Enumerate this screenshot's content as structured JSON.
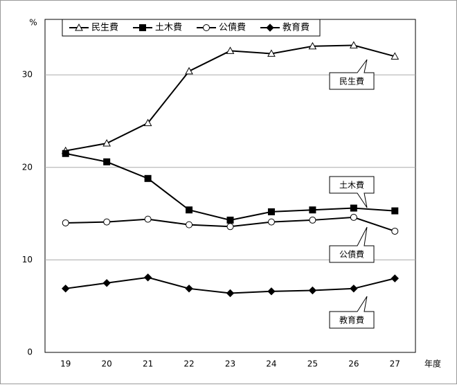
{
  "chart_data": {
    "type": "line",
    "y_label": "%",
    "x_label": "年度",
    "categories": [
      "19",
      "20",
      "21",
      "22",
      "23",
      "24",
      "25",
      "26",
      "27"
    ],
    "series": [
      {
        "name": "民生費",
        "color": "#000000",
        "marker": "triangle-open",
        "values": [
          21.8,
          22.6,
          24.8,
          30.4,
          32.6,
          32.3,
          33.1,
          33.2,
          32.0
        ]
      },
      {
        "name": "土木費",
        "color": "#000000",
        "marker": "square",
        "values": [
          21.5,
          20.6,
          18.8,
          15.4,
          14.3,
          15.2,
          15.4,
          15.6,
          15.3
        ]
      },
      {
        "name": "公債費",
        "color": "#000000",
        "marker": "circle-open",
        "values": [
          14.0,
          14.1,
          14.4,
          13.8,
          13.6,
          14.1,
          14.3,
          14.6,
          13.1
        ]
      },
      {
        "name": "教育費",
        "color": "#000000",
        "marker": "diamond",
        "values": [
          6.9,
          7.5,
          8.1,
          6.9,
          6.4,
          6.6,
          6.7,
          6.9,
          8.0
        ]
      }
    ],
    "annotations": [
      "民生費",
      "土木費",
      "公債費",
      "教育費"
    ],
    "ylim": [
      0,
      36
    ],
    "yticks": [
      0,
      10,
      20,
      30
    ],
    "grid": true,
    "legend": "top"
  }
}
